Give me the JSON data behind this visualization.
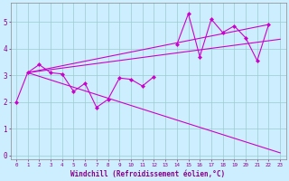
{
  "xlabel": "Windchill (Refroidissement éolien,°C)",
  "x_values": [
    0,
    1,
    2,
    3,
    4,
    5,
    6,
    7,
    8,
    9,
    10,
    11,
    12,
    13,
    14,
    15,
    16,
    17,
    18,
    19,
    20,
    21,
    22,
    23
  ],
  "zigzag": [
    2.0,
    3.1,
    3.4,
    3.1,
    3.05,
    2.4,
    2.7,
    1.8,
    2.1,
    2.9,
    2.85,
    2.6,
    2.95,
    null,
    4.15,
    5.3,
    3.7,
    5.1,
    4.6,
    4.85,
    4.4,
    3.55,
    4.9,
    null
  ],
  "upper_line1_x": [
    1,
    23
  ],
  "upper_line1_y": [
    3.1,
    4.35
  ],
  "upper_line2_x": [
    1,
    22
  ],
  "upper_line2_y": [
    3.1,
    4.9
  ],
  "lower_line_x": [
    1,
    23
  ],
  "lower_line_y": [
    3.1,
    0.1
  ],
  "bg_color": "#cceeff",
  "line_color": "#cc00cc",
  "grid_color": "#99cccc",
  "text_color": "#880088",
  "marker_size": 2.5,
  "ylim": [
    -0.15,
    5.7
  ],
  "xlim": [
    -0.5,
    23.5
  ]
}
